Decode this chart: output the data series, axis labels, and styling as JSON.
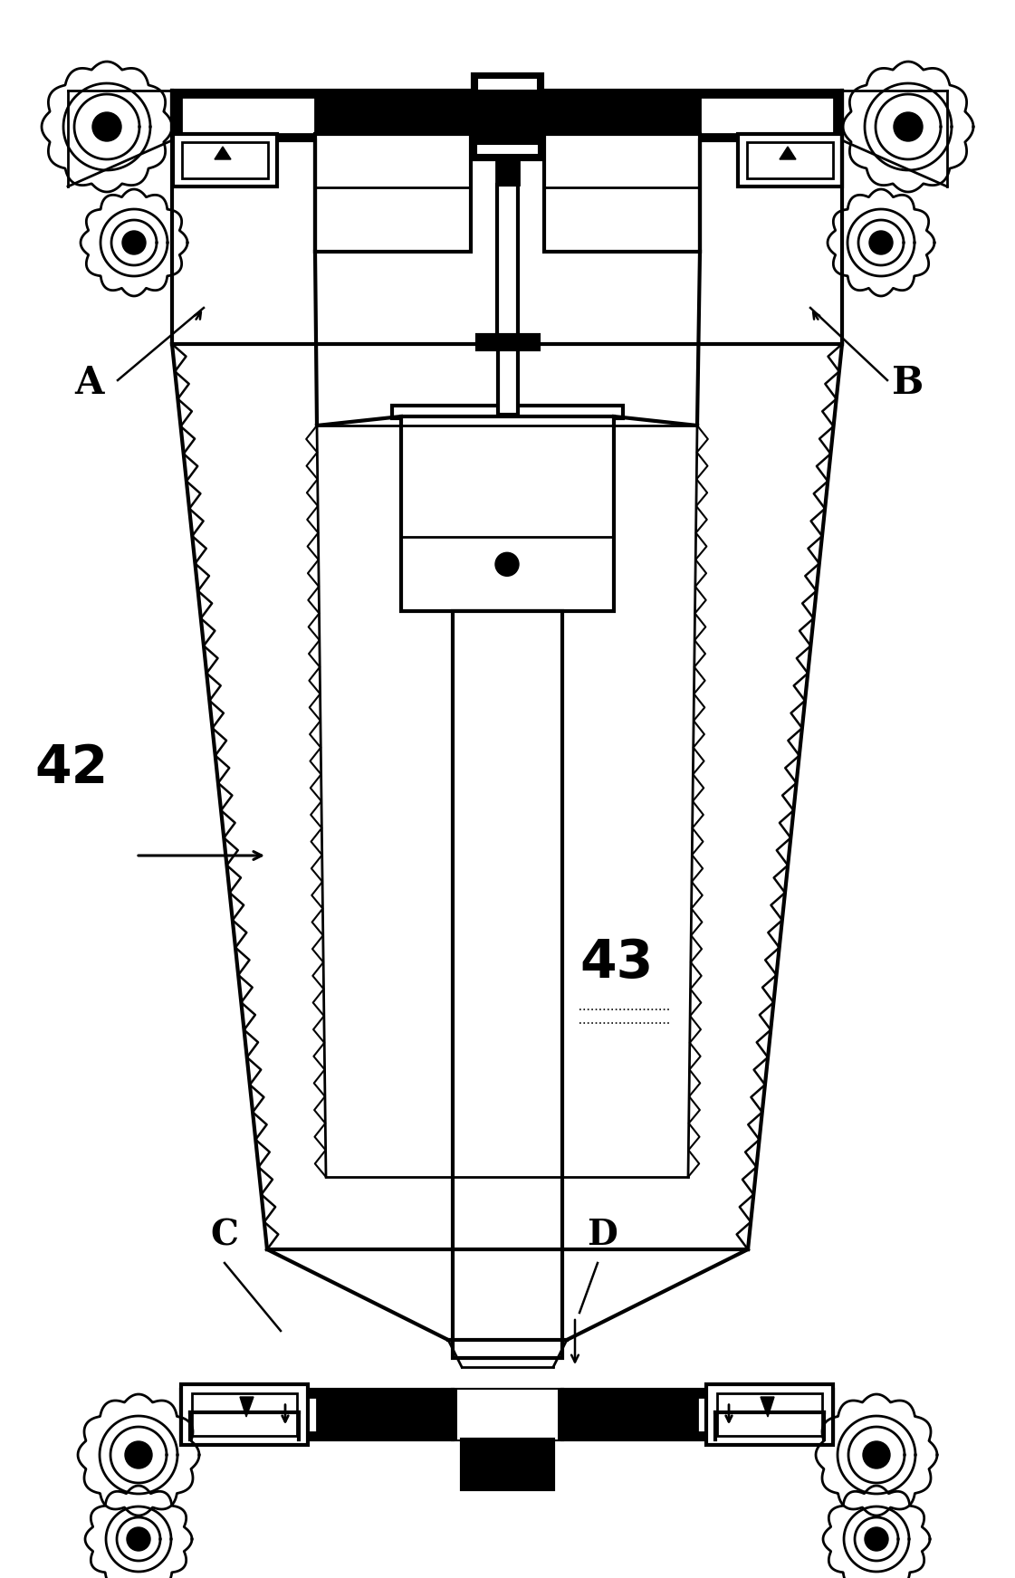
{
  "bg_color": "#ffffff",
  "lc": "#000000",
  "label_A": "A",
  "label_B": "B",
  "label_C": "C",
  "label_D": "D",
  "label_42": "42",
  "label_43": "43",
  "fig_w": 11.21,
  "fig_h": 17.43,
  "dpi": 100
}
